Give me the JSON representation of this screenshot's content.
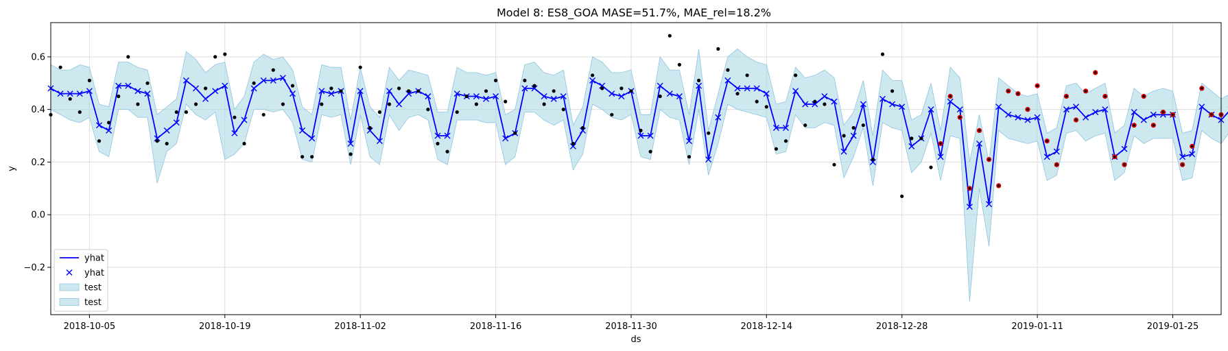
{
  "chart_data": {
    "type": "line",
    "title": "Model 8: ES8_GOA MASE=51.7%, MAE_rel=18.2%",
    "xlabel": "ds",
    "ylabel": "y",
    "xlim": [
      "2018-10-01",
      "2019-01-30"
    ],
    "ylim": [
      -0.38,
      0.73
    ],
    "grid": true,
    "legend_position": "lower-left",
    "x_tick_labels": [
      "2018-10-05",
      "2018-10-19",
      "2018-11-02",
      "2018-11-16",
      "2018-11-30",
      "2018-12-14",
      "2018-12-28",
      "2019-01-11",
      "2019-01-25"
    ],
    "y_tick_labels": [
      "−0.2",
      "0.0",
      "0.2",
      "0.4",
      "0.6"
    ],
    "y_ticks": [
      -0.2,
      0.0,
      0.2,
      0.4,
      0.6
    ],
    "legend": [
      {
        "label": "yhat",
        "kind": "line",
        "color": "#0000ff"
      },
      {
        "label": "yhat",
        "kind": "marker-x",
        "color": "#0000ff"
      },
      {
        "label": "test",
        "kind": "band",
        "color": "#add8e6"
      },
      {
        "label": "test",
        "kind": "band",
        "color": "#add8e6"
      }
    ],
    "colors": {
      "line": "#0000ff",
      "band": "#add8e6",
      "band_edge": "#8fc3de",
      "actual": "#000000",
      "test_point": "#cc0000"
    },
    "start_date": "2018-10-01",
    "yhat": [
      0.48,
      0.46,
      0.46,
      0.46,
      0.47,
      0.34,
      0.32,
      0.49,
      0.49,
      0.47,
      0.46,
      0.29,
      0.32,
      0.35,
      0.51,
      0.48,
      0.44,
      0.47,
      0.49,
      0.31,
      0.36,
      0.48,
      0.51,
      0.51,
      0.52,
      0.46,
      0.32,
      0.29,
      0.47,
      0.46,
      0.47,
      0.27,
      0.47,
      0.32,
      0.28,
      0.47,
      0.42,
      0.46,
      0.47,
      0.45,
      0.3,
      0.3,
      0.46,
      0.45,
      0.45,
      0.44,
      0.45,
      0.29,
      0.31,
      0.48,
      0.48,
      0.45,
      0.44,
      0.45,
      0.26,
      0.32,
      0.51,
      0.49,
      0.46,
      0.45,
      0.47,
      0.3,
      0.3,
      0.49,
      0.46,
      0.45,
      0.28,
      0.49,
      0.21,
      0.37,
      0.51,
      0.48,
      0.48,
      0.48,
      0.46,
      0.33,
      0.33,
      0.47,
      0.42,
      0.42,
      0.45,
      0.43,
      0.24,
      0.3,
      0.42,
      0.2,
      0.44,
      0.42,
      0.41,
      0.26,
      0.29,
      0.4,
      0.22,
      0.43,
      0.4,
      0.03,
      0.27,
      0.04,
      0.41,
      0.38,
      0.37,
      0.36,
      0.37,
      0.22,
      0.24,
      0.4,
      0.41,
      0.37,
      0.39,
      0.4,
      0.22,
      0.25,
      0.39,
      0.36,
      0.38,
      0.38,
      0.38,
      0.22,
      0.23,
      0.41,
      0.38,
      0.36,
      0.4
    ],
    "yhat_upper": [
      0.57,
      0.55,
      0.55,
      0.57,
      0.56,
      0.42,
      0.41,
      0.58,
      0.58,
      0.56,
      0.55,
      0.38,
      0.41,
      0.44,
      0.62,
      0.59,
      0.54,
      0.57,
      0.58,
      0.4,
      0.45,
      0.58,
      0.61,
      0.59,
      0.6,
      0.55,
      0.41,
      0.38,
      0.57,
      0.56,
      0.56,
      0.36,
      0.56,
      0.41,
      0.37,
      0.56,
      0.51,
      0.55,
      0.54,
      0.53,
      0.39,
      0.39,
      0.56,
      0.54,
      0.54,
      0.53,
      0.54,
      0.38,
      0.4,
      0.57,
      0.58,
      0.54,
      0.53,
      0.55,
      0.34,
      0.41,
      0.6,
      0.58,
      0.54,
      0.54,
      0.55,
      0.38,
      0.38,
      0.6,
      0.55,
      0.55,
      0.38,
      0.63,
      0.32,
      0.46,
      0.6,
      0.63,
      0.6,
      0.58,
      0.57,
      0.42,
      0.43,
      0.56,
      0.52,
      0.53,
      0.55,
      0.52,
      0.34,
      0.39,
      0.51,
      0.3,
      0.55,
      0.51,
      0.51,
      0.36,
      0.38,
      0.5,
      0.32,
      0.56,
      0.52,
      0.2,
      0.38,
      0.2,
      0.52,
      0.49,
      0.46,
      0.45,
      0.46,
      0.31,
      0.33,
      0.49,
      0.5,
      0.46,
      0.48,
      0.5,
      0.31,
      0.34,
      0.48,
      0.45,
      0.47,
      0.48,
      0.47,
      0.31,
      0.32,
      0.5,
      0.47,
      0.44,
      0.46
    ],
    "yhat_lower": [
      0.4,
      0.38,
      0.36,
      0.35,
      0.37,
      0.24,
      0.22,
      0.4,
      0.4,
      0.37,
      0.37,
      0.12,
      0.24,
      0.27,
      0.42,
      0.38,
      0.36,
      0.39,
      0.21,
      0.23,
      0.27,
      0.4,
      0.4,
      0.39,
      0.4,
      0.35,
      0.21,
      0.2,
      0.38,
      0.37,
      0.38,
      0.19,
      0.38,
      0.22,
      0.19,
      0.38,
      0.32,
      0.37,
      0.38,
      0.36,
      0.21,
      0.19,
      0.36,
      0.36,
      0.36,
      0.35,
      0.35,
      0.19,
      0.22,
      0.39,
      0.39,
      0.36,
      0.34,
      0.36,
      0.17,
      0.23,
      0.42,
      0.4,
      0.37,
      0.36,
      0.38,
      0.22,
      0.21,
      0.4,
      0.37,
      0.36,
      0.19,
      0.4,
      0.15,
      0.27,
      0.42,
      0.4,
      0.39,
      0.38,
      0.37,
      0.23,
      0.24,
      0.38,
      0.33,
      0.33,
      0.35,
      0.34,
      0.14,
      0.22,
      0.33,
      0.11,
      0.35,
      0.33,
      0.32,
      0.16,
      0.2,
      0.31,
      0.13,
      0.3,
      0.29,
      -0.33,
      0.1,
      -0.12,
      0.32,
      0.29,
      0.28,
      0.27,
      0.28,
      0.13,
      0.15,
      0.31,
      0.32,
      0.28,
      0.3,
      0.31,
      0.13,
      0.16,
      0.3,
      0.27,
      0.29,
      0.29,
      0.29,
      0.13,
      0.14,
      0.32,
      0.29,
      0.27,
      0.32
    ],
    "actual": [
      0.38,
      0.56,
      0.44,
      0.39,
      0.51,
      0.28,
      0.35,
      0.45,
      0.6,
      0.42,
      0.5,
      0.28,
      0.27,
      0.39,
      0.39,
      0.42,
      0.48,
      0.6,
      0.61,
      0.37,
      0.27,
      0.5,
      0.38,
      0.55,
      0.42,
      0.49,
      0.22,
      0.22,
      0.42,
      0.48,
      0.47,
      0.23,
      0.56,
      0.33,
      0.39,
      0.42,
      0.48,
      0.47,
      0.47,
      0.4,
      0.27,
      0.24,
      0.39,
      0.45,
      0.42,
      0.47,
      0.51,
      0.43,
      0.31,
      0.51,
      0.49,
      0.42,
      0.47,
      0.4,
      0.27,
      0.33,
      0.53,
      0.48,
      0.38,
      0.48,
      0.47,
      0.32,
      0.24,
      0.45,
      0.68,
      0.57,
      0.22,
      0.51,
      0.31,
      0.63,
      0.55,
      0.46,
      0.53,
      0.43,
      0.41,
      0.25,
      0.28,
      0.53,
      0.34,
      0.43,
      0.42,
      0.19,
      0.3,
      0.33,
      0.34,
      0.21,
      0.61,
      0.47,
      0.07,
      0.29,
      0.29,
      0.18,
      0.27,
      0.45,
      0.37,
      0.1,
      0.32,
      0.21,
      0.11,
      0.47,
      0.46,
      0.4,
      0.49,
      0.28,
      0.19,
      0.45,
      0.36,
      0.47,
      0.54,
      0.45,
      0.22,
      0.19,
      0.34,
      0.45,
      0.34,
      0.39,
      0.38,
      0.19,
      0.26,
      0.48,
      0.38,
      0.38,
      0.4
    ],
    "test_start_index": 92
  }
}
